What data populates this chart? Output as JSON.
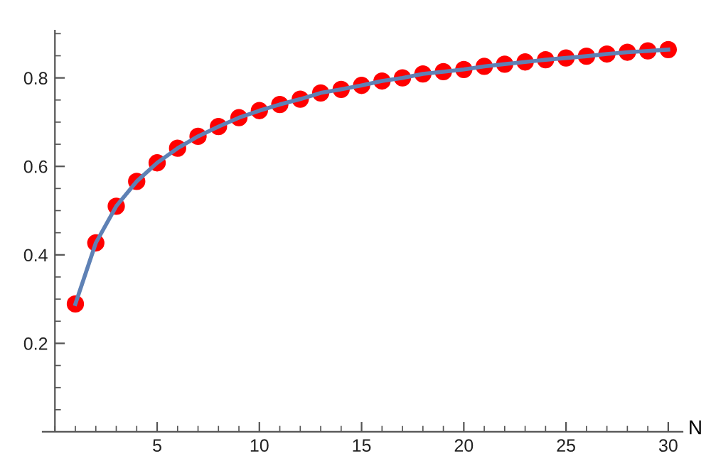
{
  "chart_data": {
    "type": "scatter",
    "xlabel": "N",
    "xlim": [
      -0.6,
      30.7
    ],
    "ylim": [
      0,
      0.907
    ],
    "xticks": [
      5,
      10,
      15,
      20,
      25,
      30
    ],
    "yticks": [
      0.2,
      0.4,
      0.6,
      0.8
    ],
    "grid": false,
    "legend": false,
    "series": [
      {
        "color": "#ff0000",
        "marker": "circle",
        "x": [
          1,
          2,
          3,
          4,
          5,
          6,
          7,
          8,
          9,
          10,
          11,
          12,
          13,
          14,
          15,
          16,
          17,
          18,
          19,
          20,
          21,
          22,
          23,
          24,
          25,
          26,
          27,
          28,
          29,
          30
        ],
        "values": [
          0.289,
          0.427,
          0.51,
          0.566,
          0.608,
          0.641,
          0.668,
          0.69,
          0.71,
          0.726,
          0.74,
          0.752,
          0.766,
          0.774,
          0.783,
          0.793,
          0.8,
          0.809,
          0.814,
          0.819,
          0.826,
          0.831,
          0.836,
          0.841,
          0.845,
          0.849,
          0.854,
          0.858,
          0.861,
          0.864
        ]
      },
      {
        "type": "line",
        "color": "#5e81b5",
        "line_style": "solid",
        "x": [
          1,
          2,
          3,
          4,
          5,
          6,
          7,
          8,
          9,
          10,
          11,
          12,
          13,
          14,
          15,
          16,
          17,
          18,
          19,
          20,
          21,
          22,
          23,
          24,
          25,
          26,
          27,
          28,
          29,
          30
        ],
        "values": [
          0.289,
          0.427,
          0.51,
          0.566,
          0.608,
          0.641,
          0.668,
          0.69,
          0.71,
          0.726,
          0.74,
          0.752,
          0.766,
          0.774,
          0.783,
          0.793,
          0.8,
          0.809,
          0.814,
          0.819,
          0.826,
          0.831,
          0.836,
          0.841,
          0.845,
          0.849,
          0.854,
          0.858,
          0.861,
          0.864
        ]
      }
    ]
  }
}
